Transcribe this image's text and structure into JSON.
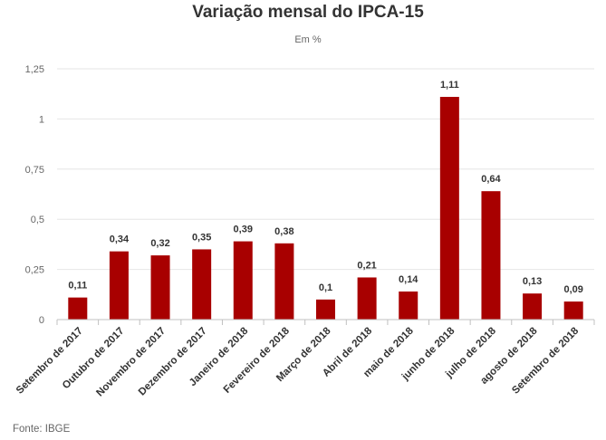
{
  "chart_data": {
    "type": "bar",
    "title": "Variação mensal do IPCA-15",
    "subtitle": "Em %",
    "source": "Fonte: IBGE",
    "categories": [
      "Setembro de 2017",
      "Outubro de 2017",
      "Novembro de 2017",
      "Dezembro de 2017",
      "Janeiro de 2018",
      "Fevereiro de 2018",
      "Março de 2018",
      "Abril de 2018",
      "maio de 2018",
      "junho de 2018",
      "julho de 2018",
      "agosto de 2018",
      "Setembro de 2018"
    ],
    "values": [
      0.11,
      0.34,
      0.32,
      0.35,
      0.39,
      0.38,
      0.1,
      0.21,
      0.14,
      1.11,
      0.64,
      0.13,
      0.09
    ],
    "data_labels": [
      "0,11",
      "0,34",
      "0,32",
      "0,35",
      "0,39",
      "0,38",
      "0,1",
      "0,21",
      "0,14",
      "1,11",
      "0,64",
      "0,13",
      "0,09"
    ],
    "yticks": [
      0,
      0.25,
      0.5,
      0.75,
      1,
      1.25
    ],
    "ytick_labels": [
      "0",
      "0,25",
      "0,5",
      "0,75",
      "1",
      "1,25"
    ],
    "ylim": [
      0,
      1.25
    ],
    "grid": true,
    "legend": "none",
    "bar_color": "#a80000"
  }
}
